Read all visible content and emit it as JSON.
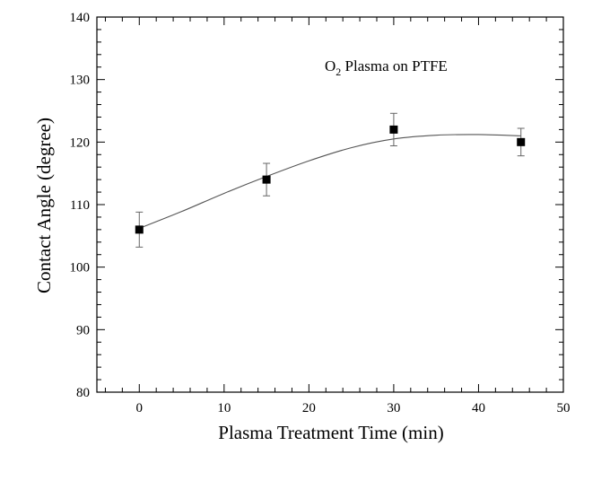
{
  "chart_data": {
    "type": "scatter",
    "xlabel": "Plasma Treatment Time (min)",
    "ylabel": "Contact Angle (degree)",
    "xlim": [
      -5,
      50
    ],
    "ylim": [
      80,
      140
    ],
    "x_ticks": [
      0,
      10,
      20,
      30,
      40,
      50
    ],
    "y_ticks": [
      80,
      90,
      100,
      110,
      120,
      130,
      140
    ],
    "x_minor_step": 2,
    "y_minor_step": 2,
    "grid": false,
    "annotation": {
      "prefix": "O",
      "subscript": "2",
      "suffix": " Plasma on PTFE"
    },
    "series": [
      {
        "marker": "square",
        "color": "#000000",
        "points": [
          {
            "x": 0,
            "y": 106,
            "err": 2.8
          },
          {
            "x": 15,
            "y": 114,
            "err": 2.6
          },
          {
            "x": 30,
            "y": 122,
            "err": 2.6
          },
          {
            "x": 45,
            "y": 120,
            "err": 2.2
          }
        ]
      }
    ],
    "fit_curve": {
      "color": "#555555",
      "points": [
        [
          0,
          106.2
        ],
        [
          5,
          108.9
        ],
        [
          10,
          111.8
        ],
        [
          15,
          114.5
        ],
        [
          20,
          117.0
        ],
        [
          25,
          119.1
        ],
        [
          30,
          120.5
        ],
        [
          35,
          121.1
        ],
        [
          40,
          121.2
        ],
        [
          45,
          121.0
        ]
      ]
    }
  }
}
